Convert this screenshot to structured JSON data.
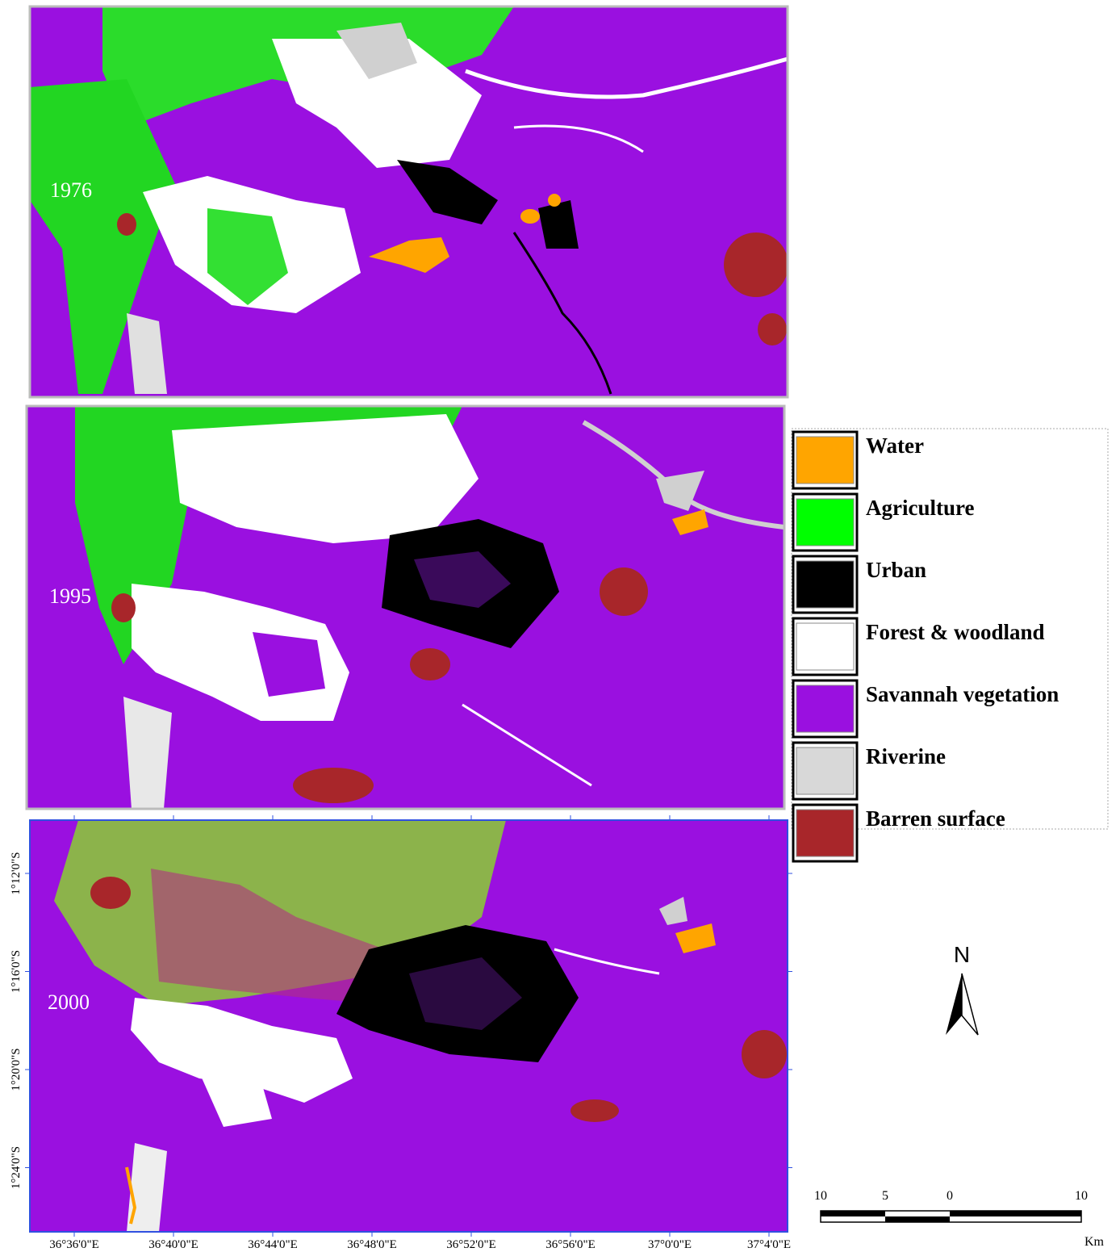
{
  "panels": [
    {
      "year": "1976"
    },
    {
      "year": "1995"
    },
    {
      "year": "2000"
    }
  ],
  "legend": [
    {
      "label": "Water",
      "color": "#ffa500"
    },
    {
      "label": "Agriculture",
      "color": "#00ff00"
    },
    {
      "label": "Urban",
      "color": "#000000"
    },
    {
      "label": "Forest & woodland",
      "color": "#ffffff"
    },
    {
      "label": "Savannah vegetation",
      "color": "#9a10e0"
    },
    {
      "label": "Riverine",
      "color": "#d8d8d8"
    },
    {
      "label": "Barren surface",
      "color": "#a8262a"
    }
  ],
  "latitude_labels": [
    "1°12'0\"S",
    "1°16'0\"S",
    "1°20'0\"S",
    "1°24'0\"S"
  ],
  "longitude_labels": [
    "36°36'0\"E",
    "36°40'0\"E",
    "36°44'0\"E",
    "36°48'0\"E",
    "36°52'0\"E",
    "36°56'0\"E",
    "37°0'0\"E",
    "37°4'0\"E"
  ],
  "north_label": "N",
  "scale_bar": {
    "labels": [
      "10",
      "5",
      "0",
      "10"
    ],
    "unit": "Km"
  }
}
